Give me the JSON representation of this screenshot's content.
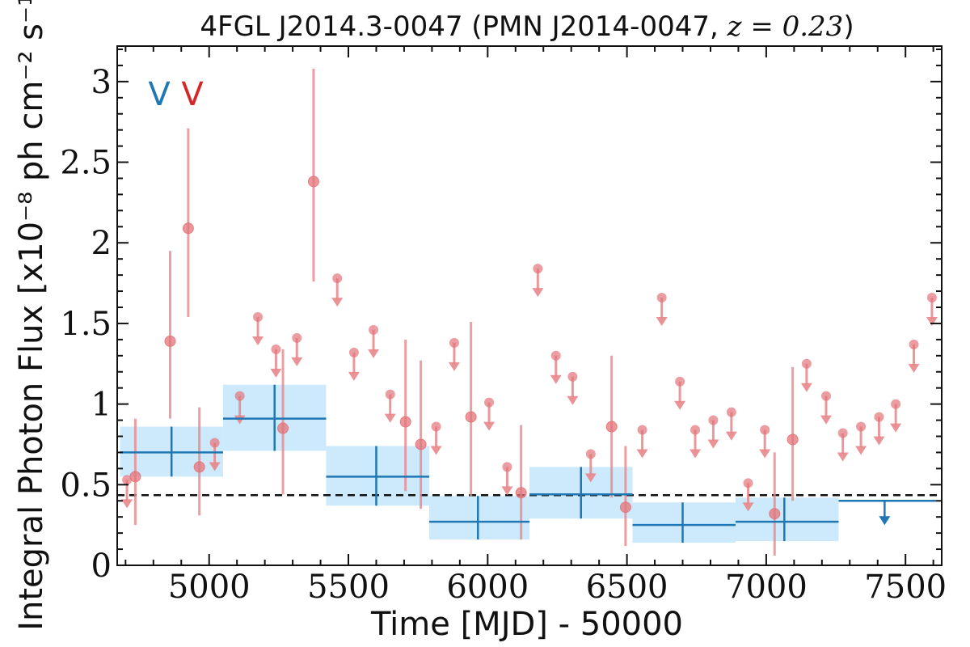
{
  "chart_data": {
    "type": "scatter",
    "title": "4FGL J2014.3-0047 (PMN J2014-0047, z = 0.23)",
    "title_parts": {
      "prefix": "4FGL J2014.3-0047 (PMN J2014-0047, ",
      "math": "z = 0.23",
      "suffix": ")"
    },
    "xlabel": "Time [MJD] - 50000",
    "ylabel": "Integral Photon Flux [x10⁻⁸ ph cm⁻² s⁻¹]",
    "xlim": [
      4670,
      7630
    ],
    "ylim": [
      0,
      3.22
    ],
    "x_ticks": [
      5000,
      5500,
      6000,
      6500,
      7000,
      7500
    ],
    "y_ticks": [
      0,
      0.5,
      1,
      1.5,
      2,
      2.5,
      3
    ],
    "y_tick_labels": [
      "0",
      "0.5",
      "1",
      "1.5",
      "2",
      "2.5",
      "3"
    ],
    "reference_line": {
      "y": 0.435,
      "style": "dashed",
      "color": "#111111"
    },
    "markers": [
      {
        "label": "V",
        "color": "#1f77b4"
      },
      {
        "label": "V",
        "color": "#d62728"
      }
    ],
    "colors": {
      "short_bins": "#e8868a",
      "short_bins_fill": "#e37479",
      "long_bins": "#1f77b4",
      "long_bins_band": "#cdeafd"
    },
    "series": [
      {
        "name": "",
        "kind": "long_bins",
        "points": [
          {
            "x": 4865,
            "x0": 4680,
            "x1": 5050,
            "y": 0.7,
            "ylo": 0.55,
            "yhi": 0.86
          },
          {
            "x": 5235,
            "x0": 5050,
            "x1": 5420,
            "y": 0.91,
            "ylo": 0.71,
            "yhi": 1.12
          },
          {
            "x": 5600,
            "x0": 5420,
            "x1": 5790,
            "y": 0.55,
            "ylo": 0.37,
            "yhi": 0.74
          },
          {
            "x": 5965,
            "x0": 5790,
            "x1": 6150,
            "y": 0.27,
            "ylo": 0.16,
            "yhi": 0.43
          },
          {
            "x": 6335,
            "x0": 6150,
            "x1": 6520,
            "y": 0.44,
            "ylo": 0.29,
            "yhi": 0.61
          },
          {
            "x": 6700,
            "x0": 6520,
            "x1": 6890,
            "y": 0.25,
            "ylo": 0.14,
            "yhi": 0.39
          },
          {
            "x": 7065,
            "x0": 6890,
            "x1": 7260,
            "y": 0.27,
            "ylo": 0.15,
            "yhi": 0.42
          }
        ],
        "upper_limits": [
          {
            "x": 7425,
            "x0": 7260,
            "x1": 7610,
            "y": 0.4
          }
        ]
      },
      {
        "name": "",
        "kind": "short_bins",
        "points": [
          {
            "x": 4735,
            "y": 0.55,
            "ylo": 0.25,
            "yhi": 0.91
          },
          {
            "x": 4860,
            "y": 1.39,
            "ylo": 0.91,
            "yhi": 1.95
          },
          {
            "x": 4925,
            "y": 2.09,
            "ylo": 1.54,
            "yhi": 2.71
          },
          {
            "x": 4965,
            "y": 0.61,
            "ylo": 0.31,
            "yhi": 0.98
          },
          {
            "x": 5265,
            "y": 0.85,
            "ylo": 0.44,
            "yhi": 1.34
          },
          {
            "x": 5375,
            "y": 2.38,
            "ylo": 1.76,
            "yhi": 3.08
          },
          {
            "x": 5705,
            "y": 0.89,
            "ylo": 0.46,
            "yhi": 1.4
          },
          {
            "x": 5760,
            "y": 0.75,
            "ylo": 0.35,
            "yhi": 1.27
          },
          {
            "x": 5940,
            "y": 0.92,
            "ylo": 0.43,
            "yhi": 1.51
          },
          {
            "x": 6120,
            "y": 0.45,
            "ylo": 0.16,
            "yhi": 0.87
          },
          {
            "x": 6445,
            "y": 0.86,
            "ylo": 0.42,
            "yhi": 1.3
          },
          {
            "x": 6495,
            "y": 0.36,
            "ylo": 0.12,
            "yhi": 0.74
          },
          {
            "x": 7030,
            "y": 0.32,
            "ylo": 0.06,
            "yhi": 0.7
          },
          {
            "x": 7095,
            "y": 0.78,
            "ylo": 0.4,
            "yhi": 1.23
          }
        ],
        "upper_limits": [
          {
            "x": 4705,
            "y": 0.53
          },
          {
            "x": 5020,
            "y": 0.76
          },
          {
            "x": 5110,
            "y": 1.05
          },
          {
            "x": 5175,
            "y": 1.54
          },
          {
            "x": 5240,
            "y": 1.34
          },
          {
            "x": 5315,
            "y": 1.41
          },
          {
            "x": 5460,
            "y": 1.78
          },
          {
            "x": 5520,
            "y": 1.32
          },
          {
            "x": 5590,
            "y": 1.46
          },
          {
            "x": 5650,
            "y": 1.06
          },
          {
            "x": 5815,
            "y": 0.86
          },
          {
            "x": 5880,
            "y": 1.38
          },
          {
            "x": 6005,
            "y": 1.01
          },
          {
            "x": 6070,
            "y": 0.61
          },
          {
            "x": 6180,
            "y": 1.84
          },
          {
            "x": 6245,
            "y": 1.3
          },
          {
            "x": 6305,
            "y": 1.17
          },
          {
            "x": 6370,
            "y": 0.69
          },
          {
            "x": 6555,
            "y": 0.84
          },
          {
            "x": 6625,
            "y": 1.66
          },
          {
            "x": 6690,
            "y": 1.14
          },
          {
            "x": 6745,
            "y": 0.84
          },
          {
            "x": 6810,
            "y": 0.9
          },
          {
            "x": 6875,
            "y": 0.95
          },
          {
            "x": 6935,
            "y": 0.51
          },
          {
            "x": 6995,
            "y": 0.84
          },
          {
            "x": 7145,
            "y": 1.25
          },
          {
            "x": 7215,
            "y": 1.05
          },
          {
            "x": 7275,
            "y": 0.82
          },
          {
            "x": 7340,
            "y": 0.86
          },
          {
            "x": 7405,
            "y": 0.92
          },
          {
            "x": 7465,
            "y": 1.0
          },
          {
            "x": 7530,
            "y": 1.37
          },
          {
            "x": 7595,
            "y": 1.66
          }
        ]
      }
    ],
    "grid": false,
    "legend": "none"
  }
}
